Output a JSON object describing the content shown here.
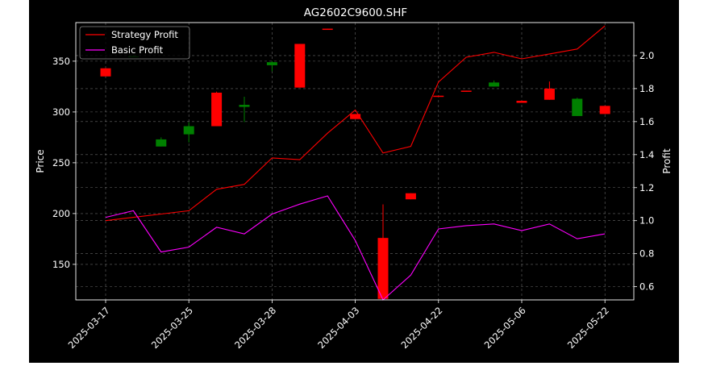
{
  "chart_data": {
    "type": "candlestick",
    "title": "AG2602C9600.SHF",
    "ylabel": "Price",
    "y2label": "Profit",
    "ylim": [
      115,
      388
    ],
    "y2lim": [
      0.52,
      2.2
    ],
    "yticks": [
      150,
      200,
      250,
      300,
      350
    ],
    "y2ticks": [
      0.6,
      0.8,
      1.0,
      1.2,
      1.4,
      1.6,
      1.8,
      2.0
    ],
    "xtick_labels": [
      "2025-03-17",
      "2025-03-25",
      "2025-03-28",
      "2025-04-03",
      "2025-04-22",
      "2025-05-06",
      "2025-05-22"
    ],
    "xtick_index": [
      0,
      3,
      6,
      9,
      12,
      15,
      18
    ],
    "grid": true,
    "legend_position": "top-left",
    "colors": {
      "up": "#008000",
      "down": "#ff0000",
      "strategy": "#ff0000",
      "basic": "#ff00ff",
      "background": "#000000",
      "text": "#ffffff"
    },
    "candles": [
      {
        "o": 343,
        "h": 343,
        "l": 335,
        "c": 335
      },
      {
        "o": 355,
        "h": 356,
        "l": 354,
        "c": 355
      },
      {
        "o": 266,
        "h": 275,
        "l": 266,
        "c": 273
      },
      {
        "o": 278,
        "h": 290,
        "l": 270,
        "c": 286
      },
      {
        "o": 319,
        "h": 320,
        "l": 286,
        "c": 286
      },
      {
        "o": 305,
        "h": 315,
        "l": 290,
        "c": 307
      },
      {
        "o": 346,
        "h": 350,
        "l": 340,
        "c": 349
      },
      {
        "o": 367,
        "h": 367,
        "l": 324,
        "c": 324
      },
      {
        "o": 382,
        "h": 382,
        "l": 381,
        "c": 381
      },
      {
        "o": 298,
        "h": 298,
        "l": 293,
        "c": 293
      },
      {
        "o": 176,
        "h": 209,
        "l": 116,
        "c": 116
      },
      {
        "o": 220,
        "h": 220,
        "l": 214,
        "c": 214
      },
      {
        "o": 316,
        "h": 316,
        "l": 315,
        "c": 315
      },
      {
        "o": 321,
        "h": 321,
        "l": 320,
        "c": 320
      },
      {
        "o": 325,
        "h": 331,
        "l": 325,
        "c": 329
      },
      {
        "o": 311,
        "h": 311,
        "l": 309,
        "c": 309
      },
      {
        "o": 323,
        "h": 330,
        "l": 312,
        "c": 312
      },
      {
        "o": 296,
        "h": 314,
        "l": 296,
        "c": 313
      },
      {
        "o": 306,
        "h": 306,
        "l": 298,
        "c": 298
      }
    ],
    "series": [
      {
        "name": "Strategy Profit",
        "values": [
          1.0,
          1.02,
          1.04,
          1.06,
          1.19,
          1.22,
          1.38,
          1.37,
          1.53,
          1.67,
          1.41,
          1.45,
          1.84,
          1.99,
          2.02,
          1.98,
          2.01,
          2.04,
          2.18
        ]
      },
      {
        "name": "Basic Profit",
        "values": [
          1.02,
          1.06,
          0.81,
          0.84,
          0.96,
          0.92,
          1.04,
          1.1,
          1.15,
          0.88,
          0.52,
          0.67,
          0.95,
          0.97,
          0.98,
          0.94,
          0.98,
          0.89,
          0.92
        ]
      }
    ]
  }
}
